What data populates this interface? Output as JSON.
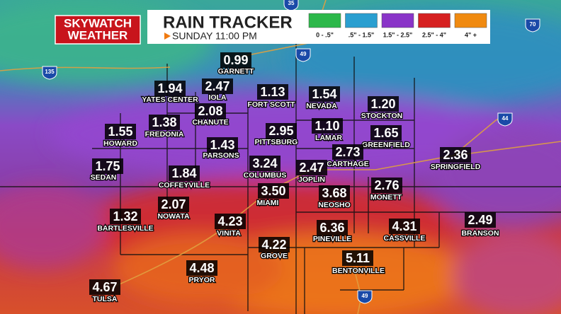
{
  "header": {
    "logo": [
      "SKYWATCH",
      "WEATHER"
    ],
    "title": "RAIN TRACKER",
    "time": "SUNDAY 11:00 PM"
  },
  "legend": [
    {
      "label": "0 - .5\"",
      "color": "#2db84a"
    },
    {
      "label": ".5\" - 1.5\"",
      "color": "#2a9fd0"
    },
    {
      "label": "1.5\" - 2.5\"",
      "color": "#8a35c8"
    },
    {
      "label": "2.5\" - 4\"",
      "color": "#d62020"
    },
    {
      "label": "4\" +",
      "color": "#f08a10"
    }
  ],
  "highways": [
    "35",
    "135",
    "49",
    "70",
    "44",
    "49"
  ],
  "cities": [
    {
      "name": "GARNETT",
      "value": "0.99"
    },
    {
      "name": "YATES CENTER",
      "value": "1.94"
    },
    {
      "name": "IOLA",
      "value": "2.47"
    },
    {
      "name": "FORT SCOTT",
      "value": "1.13"
    },
    {
      "name": "NEVADA",
      "value": "1.54"
    },
    {
      "name": "STOCKTON",
      "value": "1.20"
    },
    {
      "name": "CHANUTE",
      "value": "2.08"
    },
    {
      "name": "FREDONIA",
      "value": "1.38"
    },
    {
      "name": "HOWARD",
      "value": "1.55"
    },
    {
      "name": "PITTSBURG",
      "value": "2.95"
    },
    {
      "name": "LAMAR",
      "value": "1.10"
    },
    {
      "name": "GREENFIELD",
      "value": "1.65"
    },
    {
      "name": "PARSONS",
      "value": "1.43"
    },
    {
      "name": "CARTHAGE",
      "value": "2.73"
    },
    {
      "name": "SPRINGFIELD",
      "value": "2.36"
    },
    {
      "name": "SEDAN",
      "value": "1.75"
    },
    {
      "name": "COLUMBUS",
      "value": "3.24"
    },
    {
      "name": "JOPLIN",
      "value": "2.47"
    },
    {
      "name": "COFFEYVILLE",
      "value": "1.84"
    },
    {
      "name": "MONETT",
      "value": "2.76"
    },
    {
      "name": "MIAMI",
      "value": "3.50"
    },
    {
      "name": "NEOSHO",
      "value": "3.68"
    },
    {
      "name": "NOWATA",
      "value": "2.07"
    },
    {
      "name": "BARTLESVILLE",
      "value": "1.32"
    },
    {
      "name": "VINITA",
      "value": "4.23"
    },
    {
      "name": "PINEVILLE",
      "value": "6.36"
    },
    {
      "name": "CASSVILLE",
      "value": "4.31"
    },
    {
      "name": "BRANSON",
      "value": "2.49"
    },
    {
      "name": "GROVE",
      "value": "4.22"
    },
    {
      "name": "BENTONVILLE",
      "value": "5.11"
    },
    {
      "name": "PRYOR",
      "value": "4.48"
    },
    {
      "name": "TULSA",
      "value": "4.67"
    }
  ]
}
